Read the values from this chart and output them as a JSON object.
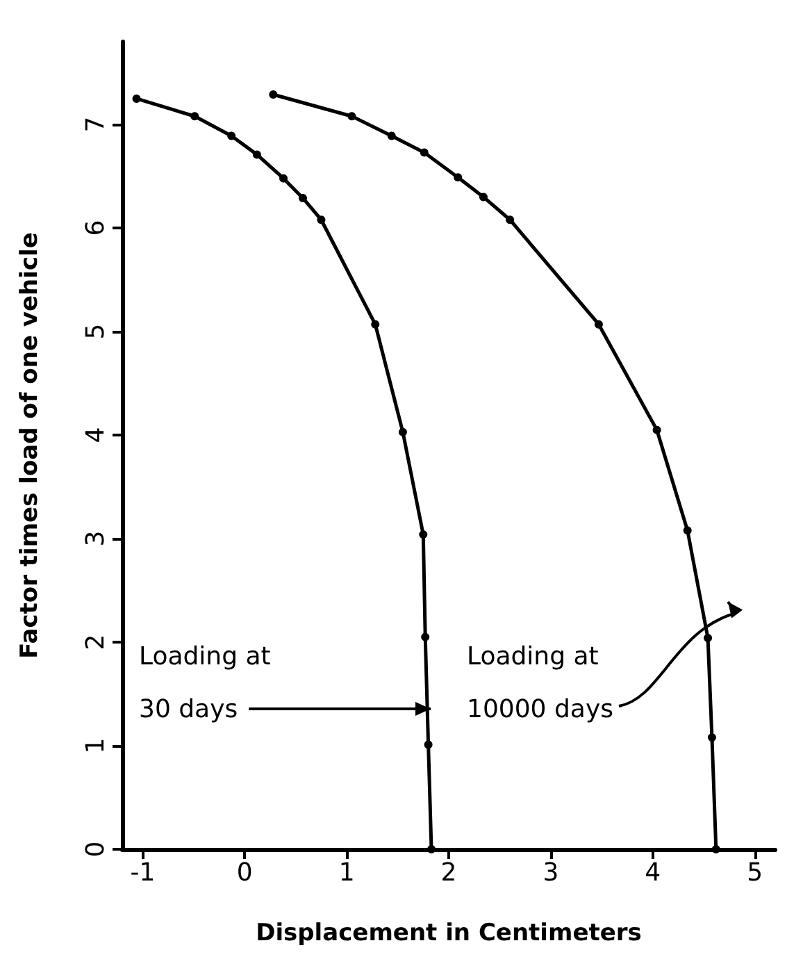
{
  "chart_data": {
    "type": "line",
    "xlabel": "Displacement in Centimeters",
    "ylabel": "Factor times load of one vehicle",
    "series": [
      {
        "color": "#000000",
        "x": [
          -1.06,
          -0.49,
          -0.13,
          0.12,
          0.38,
          0.57,
          0.75,
          1.28,
          1.55,
          1.75,
          1.77,
          1.8,
          1.83
        ],
        "values": [
          7.25,
          7.08,
          6.89,
          6.71,
          6.48,
          6.29,
          6.08,
          5.07,
          4.03,
          3.04,
          2.05,
          1.01,
          0
        ]
      },
      {
        "color": "#000000",
        "x": [
          0.28,
          1.05,
          1.44,
          1.76,
          2.09,
          2.34,
          2.6,
          3.47,
          4.04,
          4.34,
          4.54,
          4.58,
          4.62
        ],
        "values": [
          7.29,
          7.08,
          6.89,
          6.73,
          6.49,
          6.3,
          6.08,
          5.07,
          4.05,
          3.08,
          2.04,
          1.08,
          0
        ]
      }
    ],
    "annotations": [
      "Loading at\n30 days",
      "Loading at\n10000 days"
    ],
    "xlim": [
      -1.2,
      5.2
    ],
    "xticks": [
      -1,
      0,
      1,
      2,
      3,
      4,
      5
    ],
    "ylim": [
      0,
      7.8
    ],
    "yticks": [
      0,
      1,
      2,
      3,
      4,
      5,
      6,
      7
    ],
    "grid": false,
    "marker": "circle",
    "line_style": "solid"
  }
}
